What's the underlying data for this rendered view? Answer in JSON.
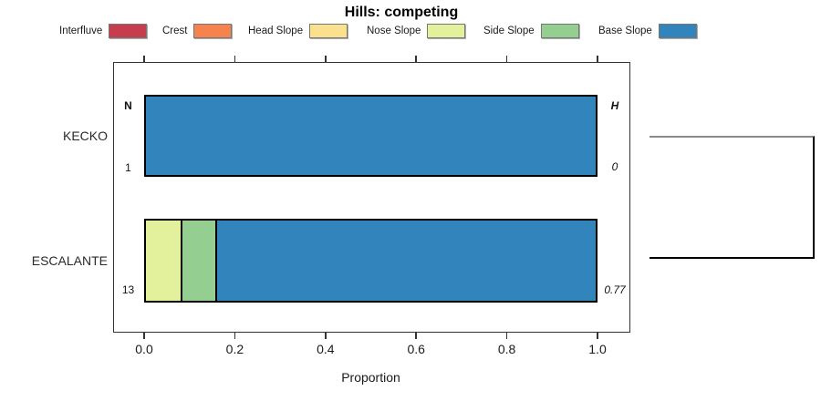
{
  "chart_data": {
    "type": "bar",
    "orientation": "horizontal",
    "stacked": true,
    "title": "Hills: competing",
    "xlabel": "Proportion",
    "xlim": [
      0.0,
      1.0
    ],
    "x_ticks": [
      0.0,
      0.2,
      0.4,
      0.6,
      0.8,
      1.0
    ],
    "x_tick_labels": [
      "0.0",
      "0.2",
      "0.4",
      "0.6",
      "0.8",
      "1.0"
    ],
    "grid": false,
    "legend_position": "top",
    "categories": [
      "KECKO",
      "ESCALANTE"
    ],
    "legend": [
      {
        "label": "Interfluve",
        "color": "#C63D4E"
      },
      {
        "label": "Crest",
        "color": "#F6824E"
      },
      {
        "label": "Head Slope",
        "color": "#FBE08E"
      },
      {
        "label": "Nose Slope",
        "color": "#E3F19C"
      },
      {
        "label": "Side Slope",
        "color": "#94CF91"
      },
      {
        "label": "Base Slope",
        "color": "#3184BC"
      }
    ],
    "series": [
      {
        "name": "Interfluve",
        "values": [
          0,
          0
        ]
      },
      {
        "name": "Crest",
        "values": [
          0,
          0
        ]
      },
      {
        "name": "Head Slope",
        "values": [
          0,
          0
        ]
      },
      {
        "name": "Nose Slope",
        "values": [
          0,
          0.077
        ]
      },
      {
        "name": "Side Slope",
        "values": [
          0,
          0.077
        ]
      },
      {
        "name": "Base Slope",
        "values": [
          1.0,
          0.846
        ]
      }
    ],
    "row_annotations": {
      "left_header": "N",
      "right_header": "H",
      "rows": [
        {
          "category": "KECKO",
          "n": "1",
          "h": "0"
        },
        {
          "category": "ESCALANTE",
          "n": "13",
          "h": "0.77"
        }
      ]
    }
  },
  "ui_colors": {
    "background": "#ffffff",
    "bar_border": "#000000",
    "box_border": "#333333",
    "swatch_border": "#777777",
    "partial_box_top": "#8a8a8a",
    "partial_box_edge": "#000000"
  }
}
